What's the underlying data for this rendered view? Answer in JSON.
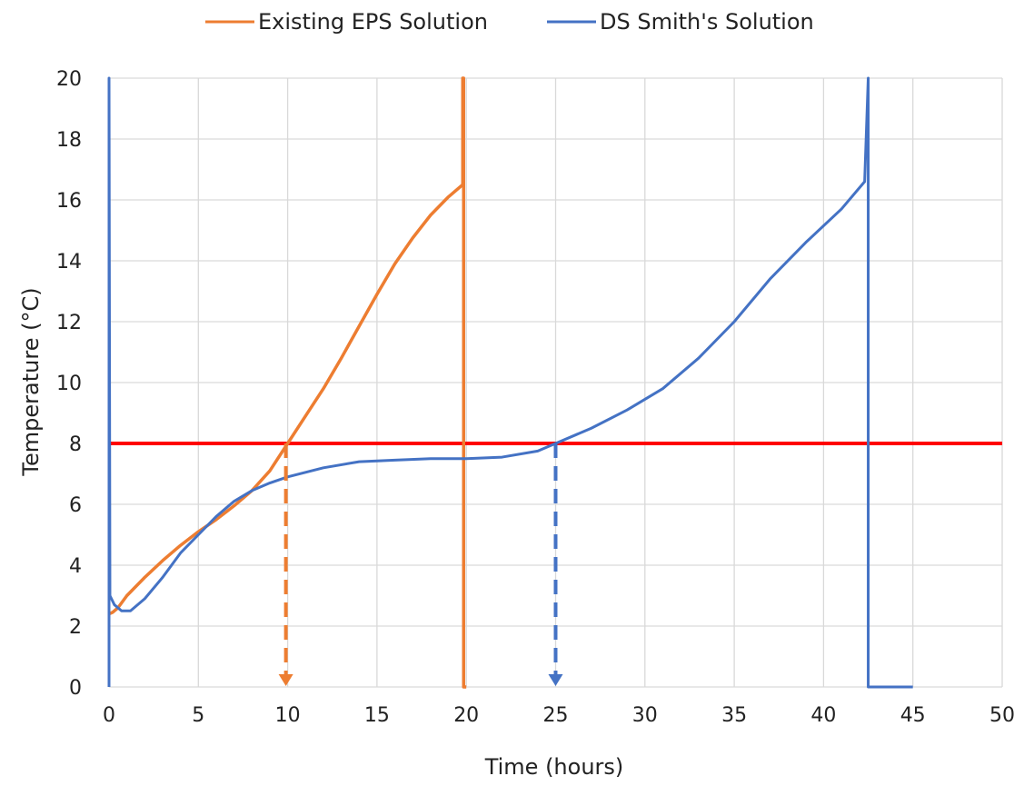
{
  "chart_data": {
    "type": "line",
    "xlabel": "Time (hours)",
    "ylabel": "Temperature (°C)",
    "xlim": [
      0,
      50
    ],
    "ylim": [
      0,
      20
    ],
    "x_ticks": [
      "0",
      "5",
      "10",
      "15",
      "20",
      "25",
      "30",
      "35",
      "40",
      "45",
      "50"
    ],
    "y_ticks": [
      "0",
      "2",
      "4",
      "6",
      "8",
      "10",
      "12",
      "14",
      "16",
      "18",
      "20"
    ],
    "grid": "on",
    "legend_position": "top-center",
    "series": [
      {
        "name": "Existing EPS Solution",
        "color": "#ED7D31",
        "points": [
          [
            0.0,
            2.4
          ],
          [
            0.2,
            2.45
          ],
          [
            0.5,
            2.6
          ],
          [
            1,
            3.0
          ],
          [
            2,
            3.6
          ],
          [
            3,
            4.15
          ],
          [
            4,
            4.65
          ],
          [
            5,
            5.1
          ],
          [
            6,
            5.5
          ],
          [
            7,
            5.95
          ],
          [
            8,
            6.45
          ],
          [
            9,
            7.1
          ],
          [
            10,
            8.0
          ],
          [
            11,
            8.9
          ],
          [
            12,
            9.8
          ],
          [
            13,
            10.8
          ],
          [
            14,
            11.85
          ],
          [
            15,
            12.9
          ],
          [
            16,
            13.9
          ],
          [
            17,
            14.75
          ],
          [
            18,
            15.5
          ],
          [
            19,
            16.1
          ],
          [
            19.8,
            16.5
          ],
          [
            19.8,
            20.0
          ],
          [
            19.85,
            20.0
          ],
          [
            19.85,
            0.0
          ],
          [
            20.0,
            0.0
          ]
        ]
      },
      {
        "name": "DS Smith's Solution",
        "color": "#4472C4",
        "points": [
          [
            0.0,
            0.0
          ],
          [
            0.0,
            20.0
          ],
          [
            0.05,
            3.0
          ],
          [
            0.3,
            2.7
          ],
          [
            0.7,
            2.5
          ],
          [
            1.2,
            2.5
          ],
          [
            2,
            2.9
          ],
          [
            3,
            3.6
          ],
          [
            4,
            4.4
          ],
          [
            5,
            5.0
          ],
          [
            6,
            5.6
          ],
          [
            7,
            6.1
          ],
          [
            8,
            6.45
          ],
          [
            9,
            6.7
          ],
          [
            10,
            6.9
          ],
          [
            12,
            7.2
          ],
          [
            14,
            7.4
          ],
          [
            16,
            7.45
          ],
          [
            18,
            7.5
          ],
          [
            20,
            7.5
          ],
          [
            22,
            7.55
          ],
          [
            24,
            7.75
          ],
          [
            25,
            8.0
          ],
          [
            27,
            8.5
          ],
          [
            29,
            9.1
          ],
          [
            31,
            9.8
          ],
          [
            33,
            10.8
          ],
          [
            35,
            12.0
          ],
          [
            37,
            13.4
          ],
          [
            39,
            14.6
          ],
          [
            41,
            15.7
          ],
          [
            42.3,
            16.6
          ],
          [
            42.5,
            20.0
          ],
          [
            42.5,
            0.0
          ],
          [
            45.0,
            0.0
          ]
        ]
      }
    ],
    "threshold_line": {
      "y": 8,
      "color": "#FF0000"
    },
    "annotations": [
      {
        "type": "dashed-arrow",
        "x": 9.9,
        "y_from": 8,
        "y_to": 0,
        "color": "#ED7D31"
      },
      {
        "type": "dashed-arrow",
        "x": 25.0,
        "y_from": 8,
        "y_to": 0,
        "color": "#4472C4"
      }
    ]
  }
}
